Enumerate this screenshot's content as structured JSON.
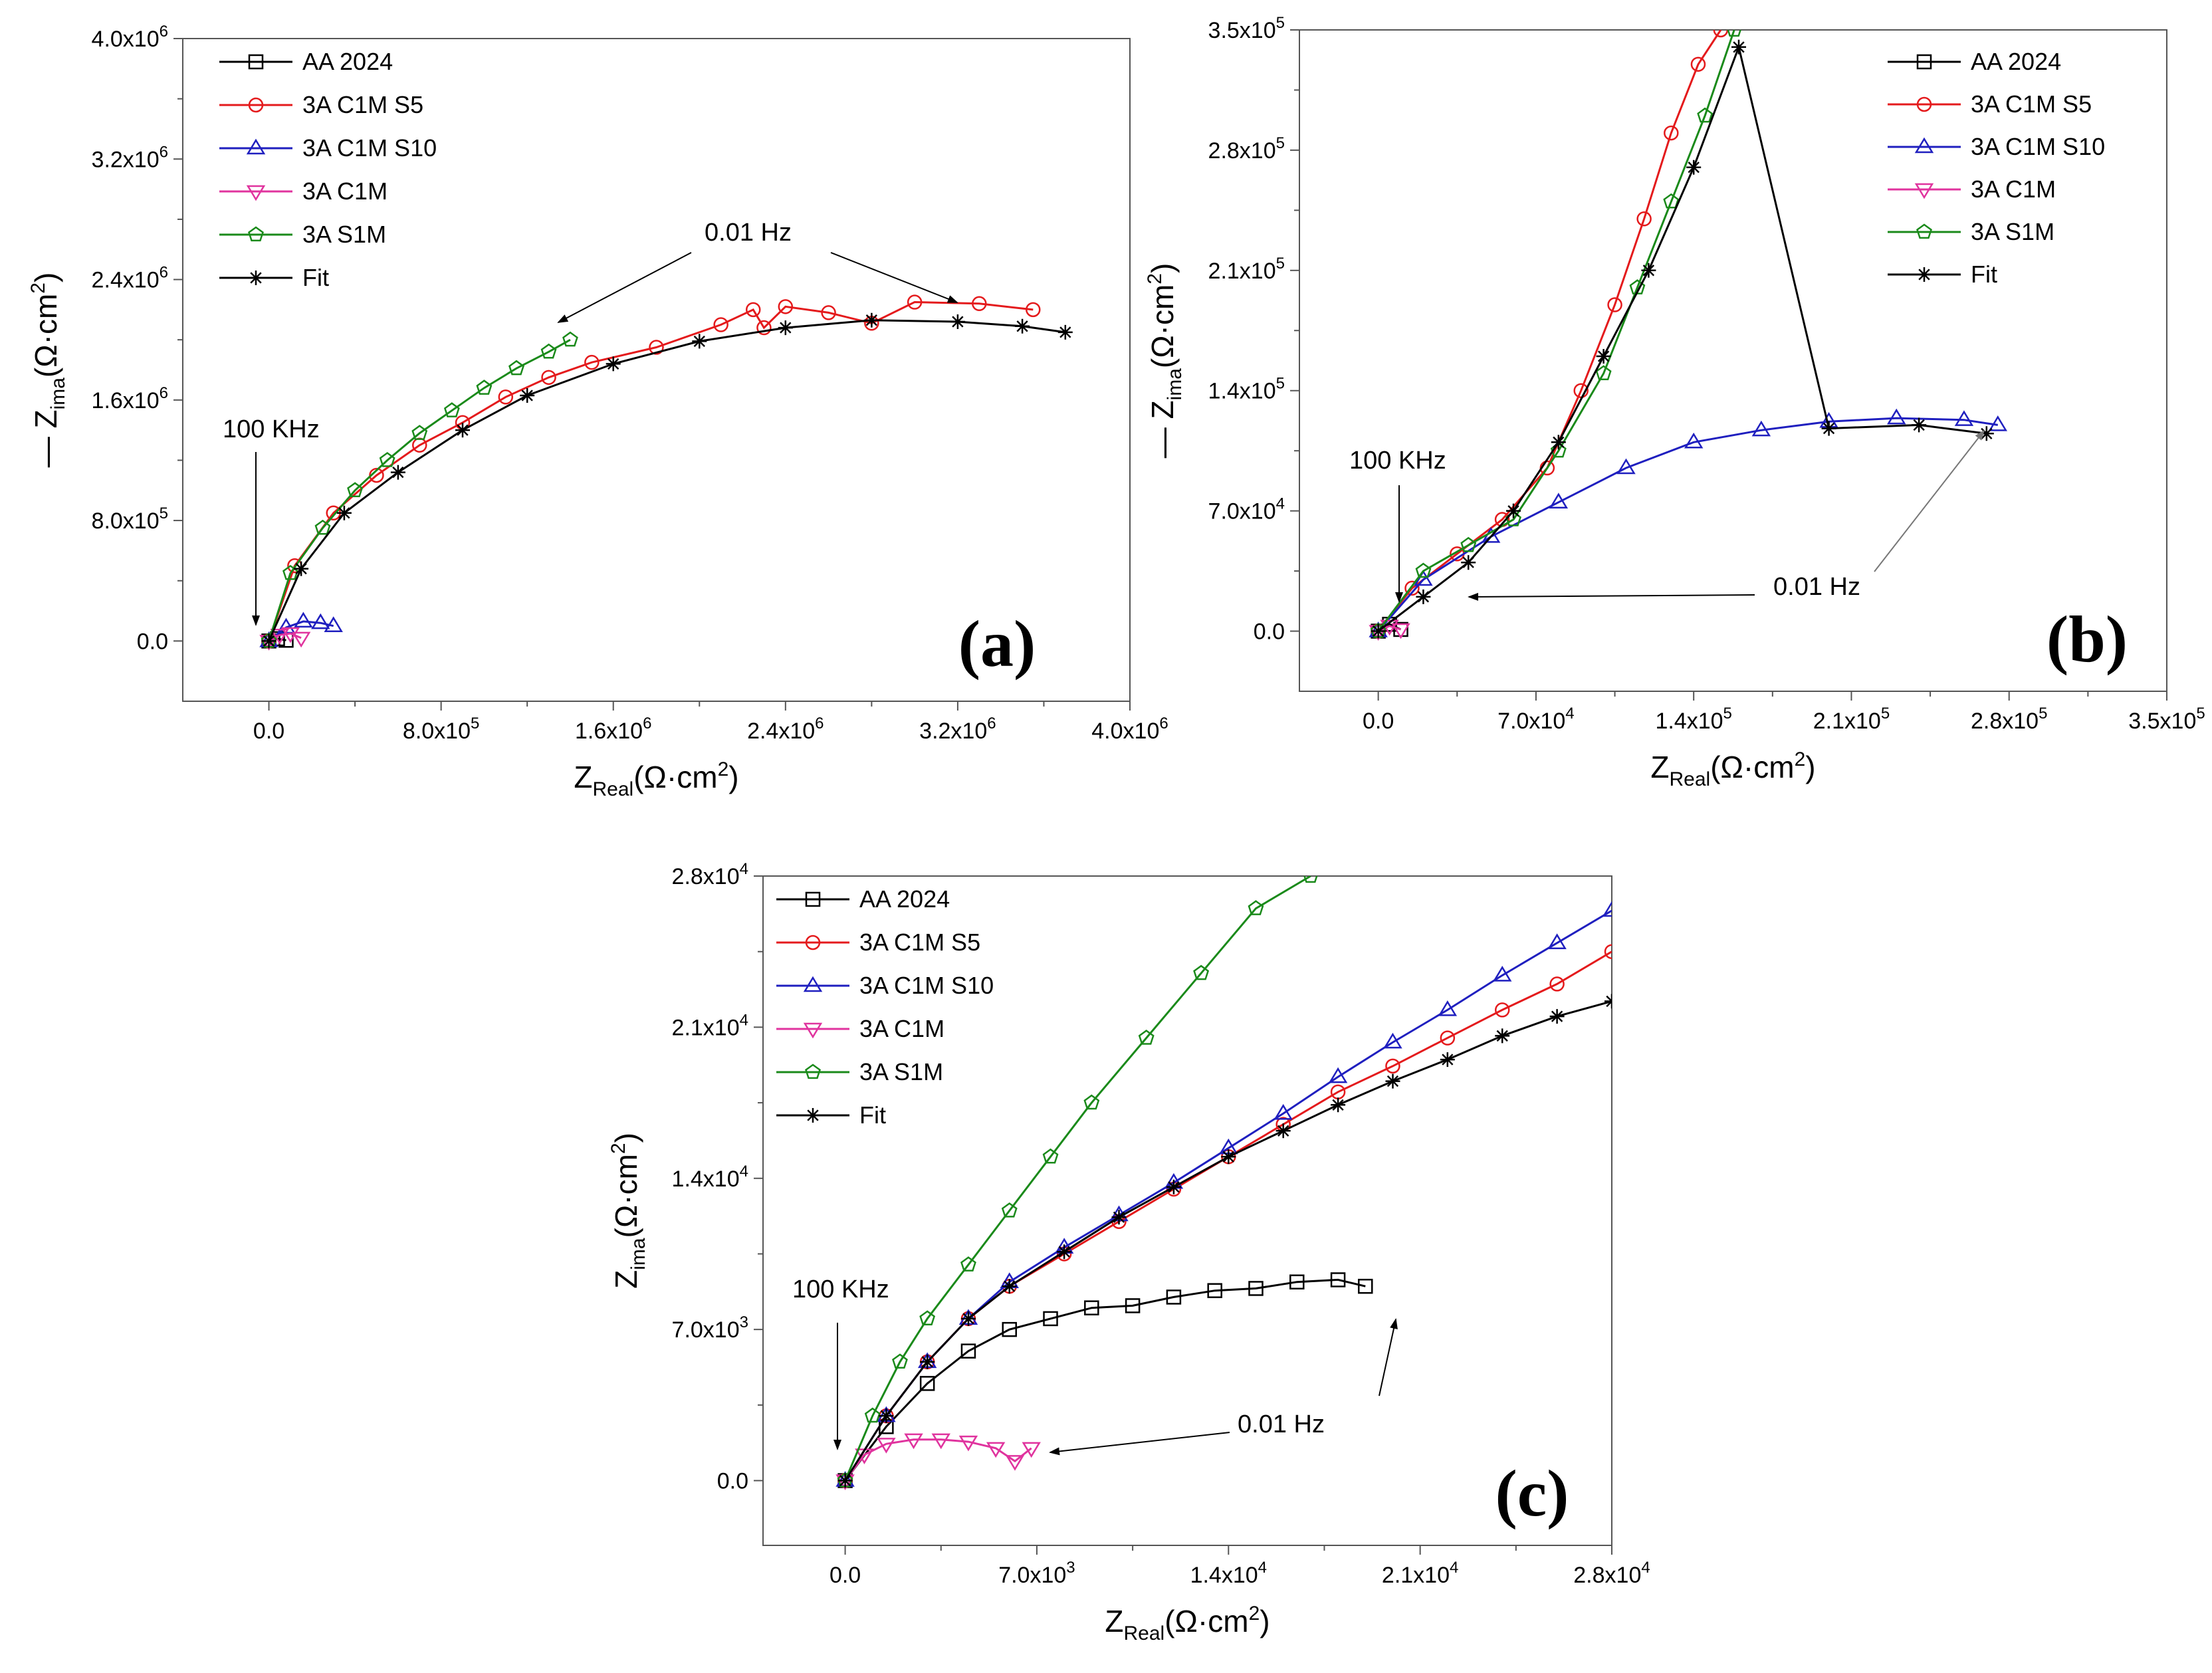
{
  "colors": {
    "AA 2024": "#000000",
    "3A C1M S5": "#e41a1c",
    "3A C1M S10": "#1f1fbf",
    "3A C1M": "#e0339e",
    "3A S1M": "#1a8a1a",
    "Fit": "#000000"
  },
  "legend_entries": [
    "AA 2024",
    "3A C1M S5",
    "3A C1M S10",
    "3A C1M",
    "3A S1M",
    "Fit"
  ],
  "chart_data": [
    {
      "id": "a",
      "type": "line",
      "panel_label": "(a)",
      "xlim": [
        -400000,
        4000000
      ],
      "ylim": [
        -400000,
        4000000
      ],
      "xticks": [
        0,
        800000,
        1600000,
        2400000,
        3200000,
        4000000
      ],
      "xtick_labels": [
        "0.0",
        "8.0x10^5",
        "1.6x10^6",
        "2.4x10^6",
        "3.2x10^6",
        "4.0x10^6"
      ],
      "yticks": [
        0,
        800000,
        1600000,
        2400000,
        3200000,
        4000000
      ],
      "ytick_labels": [
        "0.0",
        "8.0x10^5",
        "1.6x10^6",
        "2.4x10^6",
        "3.2x10^6",
        "4.0x10^6"
      ],
      "xlabel": {
        "main": "Z",
        "sub": "Real",
        "unit": "(Ω·cm",
        "sup": "2",
        "close": ")"
      },
      "ylabel": {
        "prefix": "— ",
        "main": "Z",
        "sub": "ima",
        "unit": "(Ω·cm",
        "sup": "2",
        "close": ")"
      },
      "series": [
        {
          "name": "AA 2024",
          "marker": "square",
          "x": [
            0,
            40000,
            80000
          ],
          "y": [
            0,
            15000,
            5000
          ]
        },
        {
          "name": "3A C1M S5",
          "marker": "circle",
          "x": [
            0,
            120000,
            300000,
            500000,
            700000,
            900000,
            1100000,
            1300000,
            1500000,
            1800000,
            2100000,
            2250000,
            2300000,
            2400000,
            2600000,
            2800000,
            3000000,
            3300000,
            3550000
          ],
          "y": [
            0,
            500000,
            850000,
            1100000,
            1300000,
            1450000,
            1620000,
            1750000,
            1850000,
            1950000,
            2100000,
            2200000,
            2080000,
            2220000,
            2180000,
            2110000,
            2250000,
            2240000,
            2200000
          ]
        },
        {
          "name": "3A C1M S10",
          "marker": "triangle-up",
          "x": [
            0,
            80000,
            160000,
            240000,
            300000
          ],
          "y": [
            0,
            90000,
            130000,
            120000,
            100000
          ]
        },
        {
          "name": "3A C1M",
          "marker": "triangle-down",
          "x": [
            0,
            50000,
            100000,
            150000
          ],
          "y": [
            0,
            40000,
            50000,
            20000
          ]
        },
        {
          "name": "3A S1M",
          "marker": "pentagon",
          "x": [
            0,
            100000,
            250000,
            400000,
            550000,
            700000,
            850000,
            1000000,
            1150000,
            1300000,
            1400000
          ],
          "y": [
            0,
            450000,
            750000,
            1000000,
            1200000,
            1380000,
            1530000,
            1680000,
            1810000,
            1920000,
            2000000
          ]
        },
        {
          "name": "Fit",
          "marker": "star",
          "x": [
            0,
            150000,
            350000,
            600000,
            900000,
            1200000,
            1600000,
            2000000,
            2400000,
            2800000,
            3200000,
            3500000,
            3700000
          ],
          "y": [
            0,
            480000,
            850000,
            1120000,
            1400000,
            1630000,
            1840000,
            1990000,
            2080000,
            2130000,
            2120000,
            2090000,
            2050000
          ]
        }
      ],
      "annotations": [
        {
          "text": "100 KHz",
          "points_to": [
            0,
            0
          ]
        },
        {
          "text": "0.01 Hz",
          "points_to": [
            [
              1500000,
              2000000
            ],
            [
              3550000,
              2200000
            ]
          ]
        }
      ]
    },
    {
      "id": "b",
      "type": "line",
      "panel_label": "(b)",
      "xlim": [
        -35000,
        350000
      ],
      "ylim": [
        -35000,
        350000
      ],
      "xticks": [
        0,
        70000,
        140000,
        210000,
        280000,
        350000
      ],
      "xtick_labels": [
        "0.0",
        "7.0x10^4",
        "1.4x10^5",
        "2.1x10^5",
        "2.8x10^5",
        "3.5x10^5"
      ],
      "yticks": [
        0,
        70000,
        140000,
        210000,
        280000,
        350000
      ],
      "ytick_labels": [
        "0.0",
        "7.0x10^4",
        "1.4x10^5",
        "2.1x10^5",
        "2.8x10^5",
        "3.5x10^5"
      ],
      "xlabel": {
        "main": "Z",
        "sub": "Real",
        "unit": "(Ω·cm",
        "sup": "2",
        "close": ")"
      },
      "ylabel": {
        "prefix": "— ",
        "main": "Z",
        "sub": "ima",
        "unit": "(Ω·cm",
        "sup": "2",
        "close": ")"
      },
      "series": [
        {
          "name": "AA 2024",
          "marker": "square",
          "x": [
            0,
            5000,
            10000
          ],
          "y": [
            0,
            4000,
            1000
          ]
        },
        {
          "name": "3A C1M S5",
          "marker": "circle",
          "x": [
            0,
            15000,
            35000,
            55000,
            75000,
            90000,
            105000,
            118000,
            130000,
            142000,
            152000
          ],
          "y": [
            0,
            25000,
            45000,
            65000,
            95000,
            140000,
            190000,
            240000,
            290000,
            330000,
            350000
          ]
        },
        {
          "name": "3A C1M S10",
          "marker": "triangle-up",
          "x": [
            0,
            20000,
            50000,
            80000,
            110000,
            140000,
            170000,
            200000,
            230000,
            260000,
            275000
          ],
          "y": [
            0,
            30000,
            55000,
            75000,
            95000,
            110000,
            117000,
            122000,
            124000,
            123000,
            120000
          ]
        },
        {
          "name": "3A C1M",
          "marker": "triangle-down",
          "x": [
            0,
            5000,
            10000
          ],
          "y": [
            0,
            3000,
            1000
          ]
        },
        {
          "name": "3A S1M",
          "marker": "pentagon",
          "x": [
            0,
            20000,
            40000,
            60000,
            80000,
            100000,
            115000,
            130000,
            145000,
            158000
          ],
          "y": [
            0,
            35000,
            50000,
            65000,
            105000,
            150000,
            200000,
            250000,
            300000,
            350000
          ]
        },
        {
          "name": "Fit",
          "marker": "star",
          "x": [
            0,
            20000,
            40000,
            60000,
            80000,
            100000,
            120000,
            140000,
            160000,
            200000,
            240000,
            270000
          ],
          "y": [
            0,
            20000,
            40000,
            70000,
            110000,
            160000,
            210000,
            270000,
            340000,
            118000,
            120000,
            115000
          ]
        }
      ],
      "annotations": [
        {
          "text": "100 KHz",
          "points_to": [
            0,
            0
          ]
        },
        {
          "text": "0.01 Hz",
          "points_to": [
            [
              20000,
              8000
            ],
            [
              270000,
              115000
            ]
          ]
        }
      ]
    },
    {
      "id": "c",
      "type": "line",
      "panel_label": "(c)",
      "xlim": [
        -3000,
        28000
      ],
      "ylim": [
        -3000,
        28000
      ],
      "xticks": [
        0,
        7000,
        14000,
        21000,
        28000
      ],
      "xtick_labels": [
        "0.0",
        "7.0x10^3",
        "1.4x10^4",
        "2.1x10^4",
        "2.8x10^4"
      ],
      "yticks": [
        0,
        7000,
        14000,
        21000,
        28000
      ],
      "ytick_labels": [
        "0.0",
        "7.0x10^3",
        "1.4x10^4",
        "2.1x10^4",
        "2.8x10^4"
      ],
      "xlabel": {
        "main": "Z",
        "sub": "Real",
        "unit": "(Ω·cm",
        "sup": "2",
        "close": ")"
      },
      "ylabel": {
        "prefix": "",
        "main": "Z",
        "sub": "ima",
        "unit": "(Ω·cm",
        "sup": "2",
        "close": ")"
      },
      "series": [
        {
          "name": "AA 2024",
          "marker": "square",
          "x": [
            0,
            1500,
            3000,
            4500,
            6000,
            7500,
            9000,
            10500,
            12000,
            13500,
            15000,
            16500,
            18000,
            19000
          ],
          "y": [
            0,
            2500,
            4500,
            6000,
            7000,
            7500,
            8000,
            8100,
            8500,
            8800,
            8900,
            9200,
            9300,
            9000
          ]
        },
        {
          "name": "3A C1M S5",
          "marker": "circle",
          "x": [
            0,
            1500,
            3000,
            4500,
            6000,
            8000,
            10000,
            12000,
            14000,
            16000,
            18000,
            20000,
            22000,
            24000,
            26000,
            28000
          ],
          "y": [
            0,
            3000,
            5500,
            7500,
            9000,
            10500,
            12000,
            13500,
            15000,
            16500,
            18000,
            19200,
            20500,
            21800,
            23000,
            24500
          ]
        },
        {
          "name": "3A C1M S10",
          "marker": "triangle-up",
          "x": [
            0,
            1500,
            3000,
            4500,
            6000,
            8000,
            10000,
            12000,
            14000,
            16000,
            18000,
            20000,
            22000,
            24000,
            26000,
            28000
          ],
          "y": [
            0,
            3000,
            5500,
            7500,
            9200,
            10800,
            12300,
            13800,
            15400,
            17000,
            18700,
            20300,
            21800,
            23400,
            24900,
            26400
          ]
        },
        {
          "name": "3A C1M",
          "marker": "triangle-down",
          "x": [
            0,
            700,
            1500,
            2500,
            3500,
            4500,
            5500,
            6200,
            6800
          ],
          "y": [
            0,
            1200,
            1700,
            1900,
            1900,
            1800,
            1500,
            900,
            1500
          ]
        },
        {
          "name": "3A S1M",
          "marker": "pentagon",
          "x": [
            0,
            1000,
            2000,
            3000,
            4500,
            6000,
            7500,
            9000,
            11000,
            13000,
            15000,
            17000
          ],
          "y": [
            0,
            3000,
            5500,
            7500,
            10000,
            12500,
            15000,
            17500,
            20500,
            23500,
            26500,
            28000
          ]
        },
        {
          "name": "Fit",
          "marker": "star",
          "x": [
            0,
            1500,
            3000,
            4500,
            6000,
            8000,
            10000,
            12000,
            14000,
            16000,
            18000,
            20000,
            22000,
            24000,
            26000,
            28000
          ],
          "y": [
            0,
            3000,
            5500,
            7500,
            9000,
            10600,
            12200,
            13600,
            15000,
            16200,
            17400,
            18500,
            19500,
            20600,
            21500,
            22200
          ]
        }
      ],
      "annotations": [
        {
          "text": "100 KHz",
          "points_to": [
            0,
            0
          ]
        },
        {
          "text": "0.01 Hz",
          "points_to": [
            [
              7000,
              500
            ],
            [
              20500,
              7000
            ]
          ]
        }
      ]
    }
  ]
}
